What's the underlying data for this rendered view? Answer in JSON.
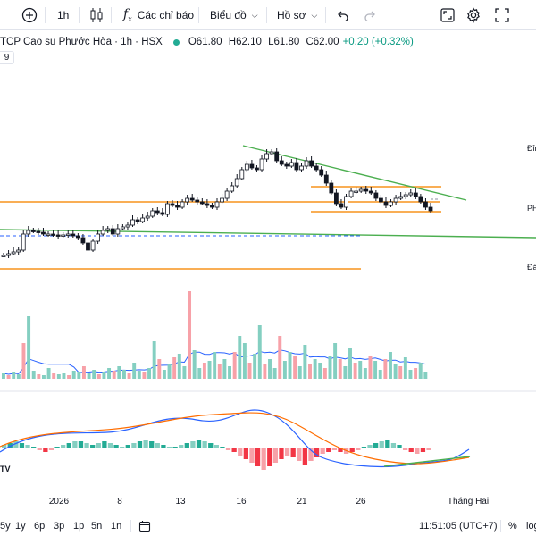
{
  "toolbar": {
    "interval": "1h",
    "indicators_label": "Các chỉ báo",
    "chart_type_label": "Biểu đồ",
    "profile_label": "Hồ sơ"
  },
  "legend": {
    "symbol": "TCP Cao su Phước Hòa · 1h · HSX",
    "open": "61.80",
    "high": "62.10",
    "low": "61.80",
    "close": "62.00",
    "change": "+0.20 (+0.32%)",
    "o_prefix": "O",
    "h_prefix": "H",
    "l_prefix": "L",
    "c_prefix": "C",
    "sub_indicator_value": "9"
  },
  "right_tags": {
    "top": "Đỉn",
    "mid": "PH",
    "bottom": "Đá"
  },
  "macd_badge": "TV",
  "time_axis": [
    "2026",
    "8",
    "13",
    "16",
    "21",
    "26",
    "Tháng Hai"
  ],
  "bottom_bar": {
    "ranges": [
      "5y",
      "1y",
      "6p",
      "3p",
      "1p",
      "5n",
      "1n"
    ],
    "clock": "11:51:05 (UTC+7)",
    "percent": "%",
    "log": "log"
  },
  "colors": {
    "up": "#22ab94",
    "down": "#f23645",
    "volume_up": "#84cfc1",
    "volume_down": "#f7a1a8",
    "orange": "#f7941d",
    "green_line": "#4caf50",
    "macd": "#2962ff",
    "signal": "#ff6d00"
  }
}
